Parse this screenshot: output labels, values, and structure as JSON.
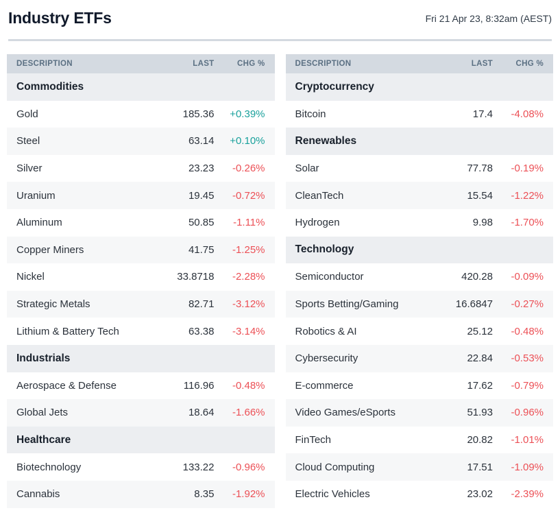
{
  "header": {
    "title": "Industry ETFs",
    "timestamp": "Fri 21 Apr 23, 8:32am (AEST)"
  },
  "colors": {
    "positive": "#1aa19c",
    "negative": "#ec5056",
    "column_header_bg": "#d4dae1",
    "section_row_bg": "#eceef1",
    "stripe_row_bg": "#f6f7f8",
    "divider": "#d4d9e0"
  },
  "tables": [
    {
      "columns": {
        "description": "DESCRIPTION",
        "last": "LAST",
        "chg": "CHG %"
      },
      "rows": [
        {
          "type": "section",
          "label": "Commodities"
        },
        {
          "type": "data",
          "label": "Gold",
          "last": "185.36",
          "chg": "+0.39%",
          "dir": "up"
        },
        {
          "type": "data",
          "label": "Steel",
          "last": "63.14",
          "chg": "+0.10%",
          "dir": "up"
        },
        {
          "type": "data",
          "label": "Silver",
          "last": "23.23",
          "chg": "-0.26%",
          "dir": "down"
        },
        {
          "type": "data",
          "label": "Uranium",
          "last": "19.45",
          "chg": "-0.72%",
          "dir": "down"
        },
        {
          "type": "data",
          "label": "Aluminum",
          "last": "50.85",
          "chg": "-1.11%",
          "dir": "down"
        },
        {
          "type": "data",
          "label": "Copper Miners",
          "last": "41.75",
          "chg": "-1.25%",
          "dir": "down"
        },
        {
          "type": "data",
          "label": "Nickel",
          "last": "33.8718",
          "chg": "-2.28%",
          "dir": "down"
        },
        {
          "type": "data",
          "label": "Strategic Metals",
          "last": "82.71",
          "chg": "-3.12%",
          "dir": "down"
        },
        {
          "type": "data",
          "label": "Lithium & Battery Tech",
          "last": "63.38",
          "chg": "-3.14%",
          "dir": "down"
        },
        {
          "type": "section",
          "label": "Industrials"
        },
        {
          "type": "data",
          "label": "Aerospace & Defense",
          "last": "116.96",
          "chg": "-0.48%",
          "dir": "down"
        },
        {
          "type": "data",
          "label": "Global Jets",
          "last": "18.64",
          "chg": "-1.66%",
          "dir": "down"
        },
        {
          "type": "section",
          "label": "Healthcare"
        },
        {
          "type": "data",
          "label": "Biotechnology",
          "last": "133.22",
          "chg": "-0.96%",
          "dir": "down"
        },
        {
          "type": "data",
          "label": "Cannabis",
          "last": "8.35",
          "chg": "-1.92%",
          "dir": "down"
        }
      ]
    },
    {
      "columns": {
        "description": "DESCRIPTION",
        "last": "LAST",
        "chg": "CHG %"
      },
      "rows": [
        {
          "type": "section",
          "label": "Cryptocurrency"
        },
        {
          "type": "data",
          "label": "Bitcoin",
          "last": "17.4",
          "chg": "-4.08%",
          "dir": "down"
        },
        {
          "type": "section",
          "label": "Renewables"
        },
        {
          "type": "data",
          "label": "Solar",
          "last": "77.78",
          "chg": "-0.19%",
          "dir": "down"
        },
        {
          "type": "data",
          "label": "CleanTech",
          "last": "15.54",
          "chg": "-1.22%",
          "dir": "down"
        },
        {
          "type": "data",
          "label": "Hydrogen",
          "last": "9.98",
          "chg": "-1.70%",
          "dir": "down"
        },
        {
          "type": "section",
          "label": "Technology"
        },
        {
          "type": "data",
          "label": "Semiconductor",
          "last": "420.28",
          "chg": "-0.09%",
          "dir": "down"
        },
        {
          "type": "data",
          "label": "Sports Betting/Gaming",
          "last": "16.6847",
          "chg": "-0.27%",
          "dir": "down"
        },
        {
          "type": "data",
          "label": "Robotics & AI",
          "last": "25.12",
          "chg": "-0.48%",
          "dir": "down"
        },
        {
          "type": "data",
          "label": "Cybersecurity",
          "last": "22.84",
          "chg": "-0.53%",
          "dir": "down"
        },
        {
          "type": "data",
          "label": "E-commerce",
          "last": "17.62",
          "chg": "-0.79%",
          "dir": "down"
        },
        {
          "type": "data",
          "label": "Video Games/eSports",
          "last": "51.93",
          "chg": "-0.96%",
          "dir": "down"
        },
        {
          "type": "data",
          "label": "FinTech",
          "last": "20.82",
          "chg": "-1.01%",
          "dir": "down"
        },
        {
          "type": "data",
          "label": "Cloud Computing",
          "last": "17.51",
          "chg": "-1.09%",
          "dir": "down"
        },
        {
          "type": "data",
          "label": "Electric Vehicles",
          "last": "23.02",
          "chg": "-2.39%",
          "dir": "down"
        }
      ]
    }
  ]
}
